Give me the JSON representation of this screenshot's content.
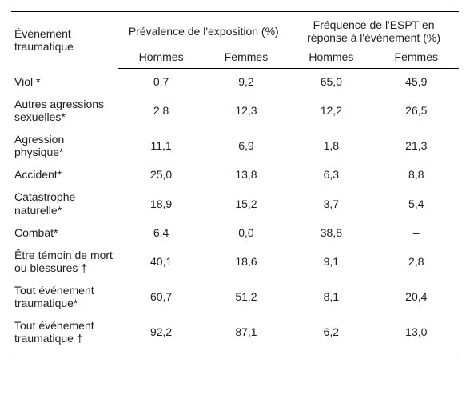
{
  "header": {
    "event_label": "Événement traumatique",
    "group_prevalence": "Prévalence de l'exposition (%)",
    "group_frequency": "Fréquence de l'ESPT en réponse à l'événement (%)",
    "sub_men": "Hommes",
    "sub_women": "Femmes"
  },
  "rows": [
    {
      "label": "Viol *",
      "pm": "0,7",
      "pf": "9,2",
      "fm": "65,0",
      "ff": "45,9"
    },
    {
      "label": "Autres agressions sexuelles*",
      "pm": "2,8",
      "pf": "12,3",
      "fm": "12,2",
      "ff": "26,5"
    },
    {
      "label": "Agression physique*",
      "pm": "11,1",
      "pf": "6,9",
      "fm": "1,8",
      "ff": "21,3"
    },
    {
      "label": "Accident*",
      "pm": "25,0",
      "pf": "13,8",
      "fm": "6,3",
      "ff": "8,8"
    },
    {
      "label": "Catastrophe naturelle*",
      "pm": "18,9",
      "pf": "15,2",
      "fm": "3,7",
      "ff": "5,4"
    },
    {
      "label": "Combat*",
      "pm": "6,4",
      "pf": "0,0",
      "fm": "38,8",
      "ff": "–"
    },
    {
      "label": "Être témoin de mort ou blessures †",
      "pm": "40,1",
      "pf": "18,6",
      "fm": "9,1",
      "ff": "2,8"
    },
    {
      "label": "Tout événement traumatique*",
      "pm": "60,7",
      "pf": "51,2",
      "fm": "8,1",
      "ff": "20,4"
    },
    {
      "label": "Tout événement traumatique †",
      "pm": "92,2",
      "pf": "87,1",
      "fm": "6,2",
      "ff": "13,0"
    }
  ]
}
